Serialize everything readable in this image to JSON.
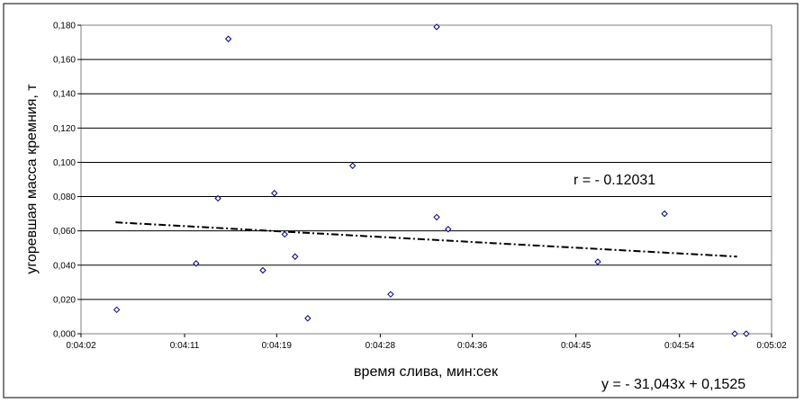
{
  "chart_data": {
    "type": "scatter",
    "xlabel": "время слива, мин:сек",
    "ylabel": "угоревшая масса кремния, т",
    "x_unit": "seconds",
    "xlim": [
      242,
      302
    ],
    "ylim": [
      0,
      0.18
    ],
    "y_ticks": [
      "0,000",
      "0,020",
      "0,040",
      "0,060",
      "0,080",
      "0,100",
      "0,120",
      "0,140",
      "0,160",
      "0,180"
    ],
    "x_ticks": [
      {
        "value": 242,
        "label": "0:04:02"
      },
      {
        "value": 251,
        "label": "0:04:11"
      },
      {
        "value": 259,
        "label": "0:04:19"
      },
      {
        "value": 268,
        "label": "0:04:28"
      },
      {
        "value": 276,
        "label": "0:04:36"
      },
      {
        "value": 285,
        "label": "0:04:45"
      },
      {
        "value": 294,
        "label": "0:04:54"
      },
      {
        "value": 302,
        "label": "0:05:02"
      }
    ],
    "grid": {
      "horizontal": true,
      "vertical": false
    },
    "points": [
      {
        "x": 245.1,
        "y": 0.014
      },
      {
        "x": 252.0,
        "y": 0.041
      },
      {
        "x": 253.9,
        "y": 0.079
      },
      {
        "x": 254.8,
        "y": 0.172
      },
      {
        "x": 257.8,
        "y": 0.037
      },
      {
        "x": 258.8,
        "y": 0.082
      },
      {
        "x": 259.7,
        "y": 0.058
      },
      {
        "x": 260.6,
        "y": 0.045
      },
      {
        "x": 261.7,
        "y": 0.009
      },
      {
        "x": 265.6,
        "y": 0.098
      },
      {
        "x": 268.9,
        "y": 0.023
      },
      {
        "x": 272.9,
        "y": 0.068
      },
      {
        "x": 272.9,
        "y": 0.179
      },
      {
        "x": 273.9,
        "y": 0.061
      },
      {
        "x": 286.9,
        "y": 0.042
      },
      {
        "x": 292.7,
        "y": 0.07
      },
      {
        "x": 298.8,
        "y": 0.0
      },
      {
        "x": 299.8,
        "y": 0.0
      }
    ],
    "trendline": {
      "x": [
        245,
        299
      ],
      "y": [
        0.065,
        0.045
      ],
      "style": "dash-dot",
      "color": "#000000"
    },
    "marker_color": "#00008b"
  },
  "annotations": {
    "r_label": "r = - 0.12031",
    "equation": "y = - 31,043x + 0,1525"
  }
}
